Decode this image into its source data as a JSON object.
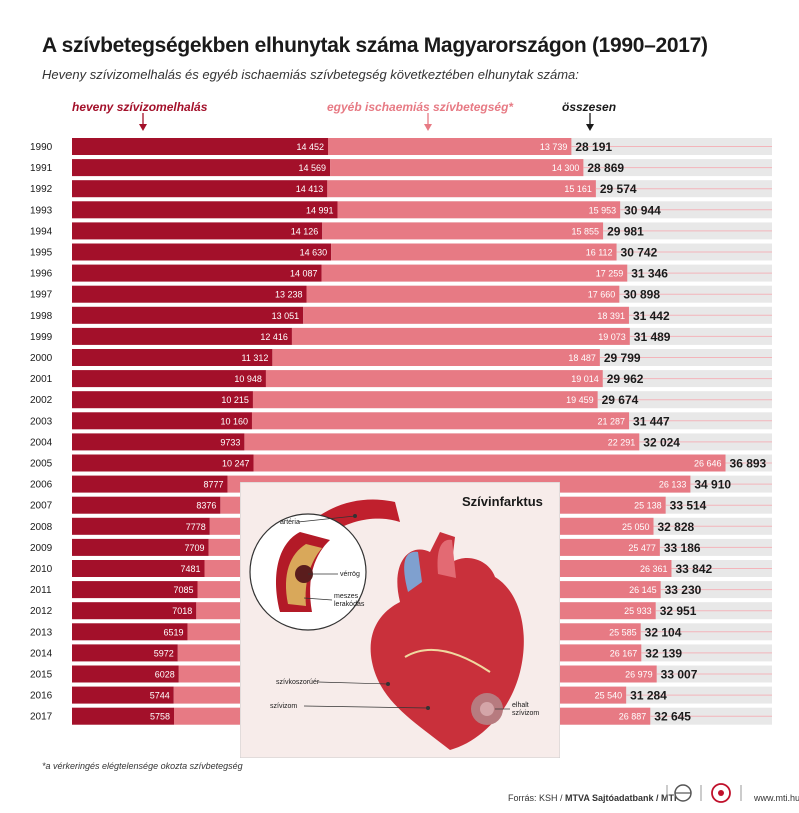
{
  "header": {
    "title": "A szívbetegségekben elhunytak száma Magyarországon (1990–2017)",
    "subtitle": "Heveny szívizomelhalás és egyéb ischaemiás szívbetegség következtében elhunytak száma:"
  },
  "legend": {
    "acute": "heveny szívizomelhalás",
    "other": "egyéb ischaemiás szívbetegség*",
    "total": "összesen"
  },
  "colors": {
    "acute": "#a3102a",
    "other": "#e77a84",
    "other_line": "#f3b4ba",
    "total": "#1a1a1a",
    "background": "#ffffff",
    "inset_bg": "#f7ecea"
  },
  "chart_data": {
    "type": "bar",
    "stacked": true,
    "orientation": "horizontal",
    "categories": [
      "1990",
      "1991",
      "1992",
      "1993",
      "1994",
      "1995",
      "1996",
      "1997",
      "1998",
      "1999",
      "2000",
      "2001",
      "2002",
      "2003",
      "2004",
      "2005",
      "2006",
      "2007",
      "2008",
      "2009",
      "2010",
      "2011",
      "2012",
      "2013",
      "2014",
      "2015",
      "2016",
      "2017"
    ],
    "series": [
      {
        "name": "heveny szívizomelhalás",
        "values": [
          14452,
          14569,
          14413,
          14991,
          14126,
          14630,
          14087,
          13238,
          13051,
          12416,
          11312,
          10948,
          10215,
          10160,
          9733,
          10247,
          8777,
          8376,
          7778,
          7709,
          7481,
          7085,
          7018,
          6519,
          5972,
          6028,
          5744,
          5758
        ]
      },
      {
        "name": "egyéb ischaemiás szívbetegség*",
        "values": [
          13739,
          14300,
          15161,
          15953,
          15855,
          16112,
          17259,
          17660,
          18391,
          19073,
          18487,
          19014,
          19459,
          21287,
          22291,
          26646,
          26133,
          25138,
          25050,
          25477,
          26361,
          26145,
          25933,
          25585,
          26167,
          26979,
          25540,
          26887
        ]
      }
    ],
    "value_labels_acute": [
      "14 452",
      "14 569",
      "14 413",
      "14 991",
      "14 126",
      "14 630",
      "14 087",
      "13 238",
      "13 051",
      "12 416",
      "11 312",
      "10 948",
      "10 215",
      "10 160",
      "9733",
      "10 247",
      "8777",
      "8376",
      "7778",
      "7709",
      "7481",
      "7085",
      "7018",
      "6519",
      "5972",
      "6028",
      "5744",
      "5758"
    ],
    "value_labels_other": [
      "13 739",
      "14 300",
      "15 161",
      "15 953",
      "15 855",
      "16 112",
      "17 259",
      "17 660",
      "18 391",
      "19 073",
      "18 487",
      "19 014",
      "19 459",
      "21 287",
      "22 291",
      "26 646",
      "26 133",
      "25 138",
      "25 050",
      "25 477",
      "26 361",
      "26 145",
      "25 933",
      "25 585",
      "26 167",
      "26 979",
      "25 540",
      "26 887"
    ],
    "totals": [
      "28 191",
      "28 869",
      "29 574",
      "30 944",
      "29 981",
      "30 742",
      "31 346",
      "30 898",
      "31 442",
      "31 489",
      "29 799",
      "29 962",
      "29 674",
      "31 447",
      "32 024",
      "36 893",
      "34 910",
      "33 514",
      "32 828",
      "33 186",
      "33 842",
      "33 230",
      "32 951",
      "32 104",
      "32 139",
      "33 007",
      "31 284",
      "32 645"
    ],
    "grid": false
  },
  "inset": {
    "title": "Szívinfarktus",
    "labels": {
      "arteria": "artéria",
      "clot": "vérrög",
      "plaque_1": "meszes",
      "plaque_2": "lerakódás",
      "coronary": "szívkoszorúér",
      "myocardium": "szívizom",
      "dead_1": "elhalt",
      "dead_2": "szívizom"
    }
  },
  "footnote": "*a vérkeringés elégtelensége okozta szívbetegség",
  "footer": {
    "source_prefix": "Forrás: KSH / ",
    "source_bold": "MTVA Sajtóadatbank / MTI",
    "url": "www.mti.hu"
  }
}
